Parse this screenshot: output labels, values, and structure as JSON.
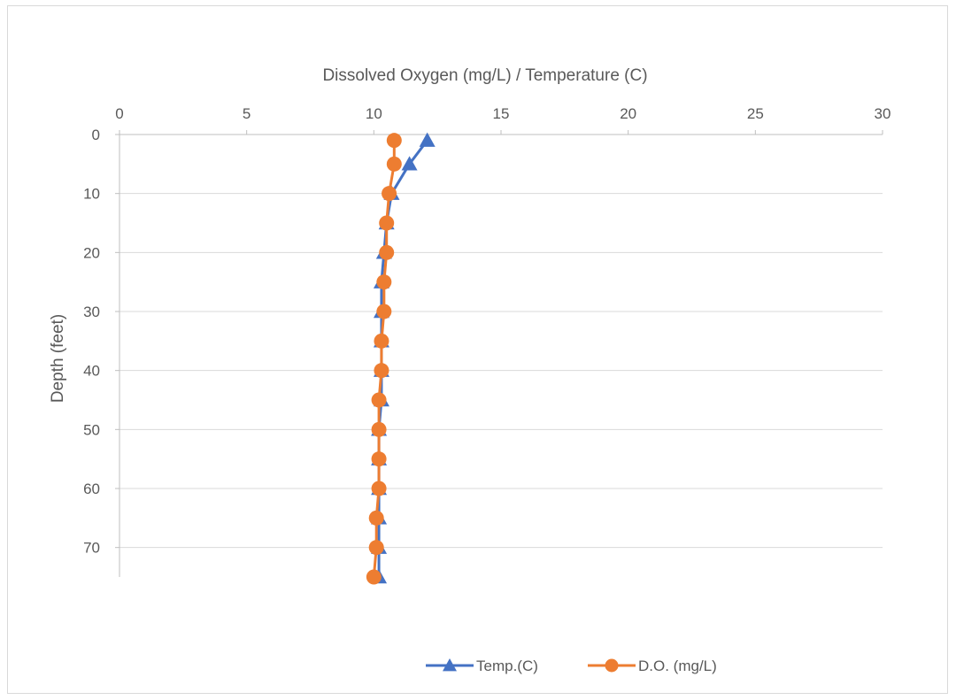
{
  "chart_data": {
    "type": "line",
    "xlabel": "Dissolved Oxygen (mg/L) / Temperature (C)",
    "ylabel": "Depth (feet)",
    "xlim": [
      0,
      30
    ],
    "ylim": [
      0,
      75
    ],
    "y_reversed": true,
    "x_axis_position": "top",
    "x_ticks": [
      0,
      5,
      10,
      15,
      20,
      25,
      30
    ],
    "y_ticks": [
      0,
      10,
      20,
      30,
      40,
      50,
      60,
      70
    ],
    "grid": true,
    "legend_position": "bottom",
    "series": [
      {
        "name": "Temp.(C)",
        "color": "#4472c4",
        "marker": "triangle",
        "points": [
          {
            "x": 12.1,
            "y": 1
          },
          {
            "x": 11.4,
            "y": 5
          },
          {
            "x": 10.7,
            "y": 10
          },
          {
            "x": 10.5,
            "y": 15
          },
          {
            "x": 10.4,
            "y": 20
          },
          {
            "x": 10.3,
            "y": 25
          },
          {
            "x": 10.3,
            "y": 30
          },
          {
            "x": 10.3,
            "y": 35
          },
          {
            "x": 10.3,
            "y": 40
          },
          {
            "x": 10.3,
            "y": 45
          },
          {
            "x": 10.2,
            "y": 50
          },
          {
            "x": 10.2,
            "y": 55
          },
          {
            "x": 10.2,
            "y": 60
          },
          {
            "x": 10.2,
            "y": 65
          },
          {
            "x": 10.2,
            "y": 70
          },
          {
            "x": 10.2,
            "y": 75
          }
        ]
      },
      {
        "name": "D.O. (mg/L)",
        "color": "#ed7d31",
        "marker": "circle",
        "points": [
          {
            "x": 10.8,
            "y": 1
          },
          {
            "x": 10.8,
            "y": 5
          },
          {
            "x": 10.6,
            "y": 10
          },
          {
            "x": 10.5,
            "y": 15
          },
          {
            "x": 10.5,
            "y": 20
          },
          {
            "x": 10.4,
            "y": 25
          },
          {
            "x": 10.4,
            "y": 30
          },
          {
            "x": 10.3,
            "y": 35
          },
          {
            "x": 10.3,
            "y": 40
          },
          {
            "x": 10.2,
            "y": 45
          },
          {
            "x": 10.2,
            "y": 50
          },
          {
            "x": 10.2,
            "y": 55
          },
          {
            "x": 10.2,
            "y": 60
          },
          {
            "x": 10.1,
            "y": 65
          },
          {
            "x": 10.1,
            "y": 70
          },
          {
            "x": 10.0,
            "y": 75
          }
        ]
      }
    ]
  }
}
